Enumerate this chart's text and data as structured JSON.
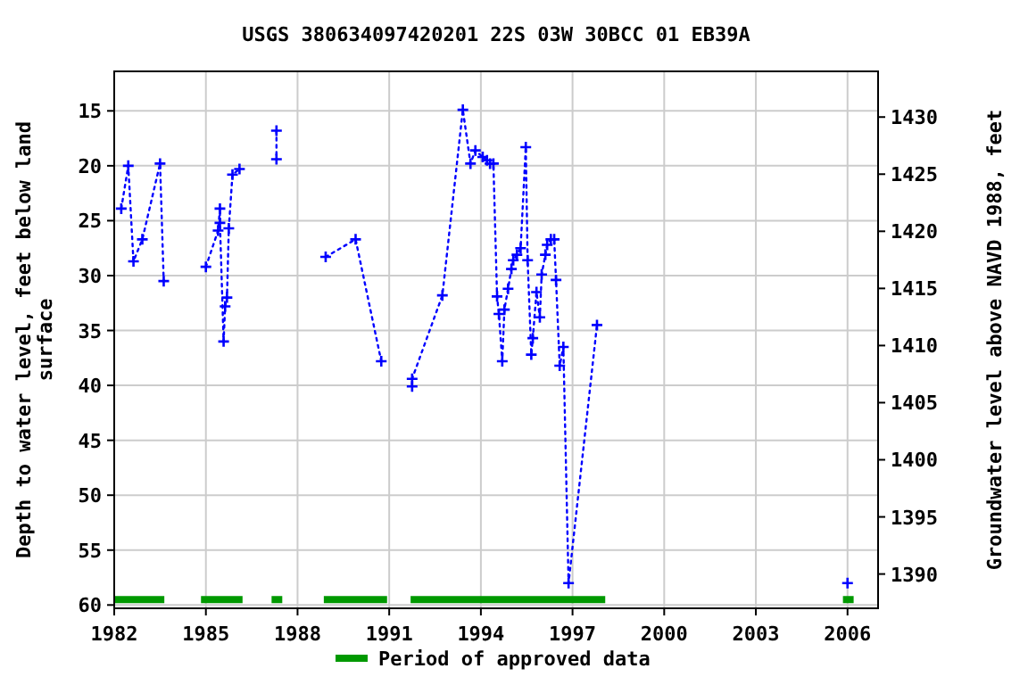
{
  "chart_data": {
    "type": "line",
    "title": "USGS 380634097420201 22S 03W 30BCC 01  EB39A",
    "xlabel": null,
    "ylabel": "Depth to water level, feet below land\nsurface",
    "y2label": "Groundwater level above NAVD 1988, feet",
    "x": [
      1982.23,
      1982.46,
      1982.63,
      1982.92,
      1983.5,
      1983.62,
      1984.3,
      1985.0,
      1985.4,
      1985.46,
      1985.46,
      1985.58,
      1985.63,
      1985.69,
      1985.75,
      1985.87,
      1986.1,
      1986.7,
      1987.31,
      1987.31,
      1988.1,
      1988.92,
      1989.9,
      1990.74,
      1991.2,
      1991.75,
      1991.75,
      1992.74,
      1993.41,
      1993.66,
      1993.82,
      1994.06,
      1994.2,
      1994.3,
      1994.41,
      1994.53,
      1994.59,
      1994.7,
      1994.77,
      1994.89,
      1995.0,
      1995.06,
      1995.18,
      1995.3,
      1995.47,
      1995.53,
      1995.65,
      1995.7,
      1995.82,
      1995.93,
      1995.99,
      1996.11,
      1996.17,
      1996.29,
      1996.4,
      1996.46,
      1996.58,
      1996.7,
      1996.87,
      1997.8,
      2002.0,
      2006.0
    ],
    "series": [
      {
        "color": "#0000ff",
        "values": [
          23.9,
          20.0,
          28.7,
          26.7,
          19.8,
          30.5,
          null,
          29.2,
          25.9,
          23.9,
          25.2,
          36.0,
          32.8,
          32.0,
          25.7,
          20.8,
          20.3,
          null,
          16.8,
          19.4,
          null,
          28.3,
          26.7,
          37.8,
          null,
          40.1,
          39.4,
          31.8,
          14.9,
          19.8,
          18.6,
          19.2,
          19.5,
          19.8,
          19.8,
          31.9,
          33.5,
          37.8,
          33.1,
          31.2,
          29.4,
          28.6,
          28.1,
          27.5,
          18.3,
          28.6,
          37.2,
          35.7,
          31.5,
          33.8,
          29.9,
          28.1,
          27.2,
          26.7,
          26.7,
          30.4,
          38.2,
          36.5,
          58.0,
          34.5,
          null,
          58.0
        ]
      },
      {
        "name": "Period of approved data",
        "color": "#009900",
        "marker": "none",
        "line_style": "solid",
        "x": [
          1982.0,
          1983.64,
          1984.2,
          1984.84,
          1986.2,
          1986.7,
          1987.15,
          1987.5,
          1988.1,
          1988.86,
          1990.93,
          1991.3,
          1991.7,
          1998.07,
          2002.0,
          2005.85,
          2006.2
        ],
        "values": [
          59.5,
          59.5,
          null,
          59.5,
          59.5,
          null,
          59.5,
          59.5,
          null,
          59.5,
          59.5,
          null,
          59.5,
          59.5,
          null,
          59.5,
          59.5
        ]
      }
    ],
    "xlim": [
      1982,
      2007
    ],
    "ylim": [
      60.3,
      11.4
    ],
    "y2lim": [
      1387,
      1434
    ],
    "xticks": [
      1982,
      1985,
      1988,
      1991,
      1994,
      1997,
      2000,
      2003,
      2006
    ],
    "yticks": [
      15,
      20,
      25,
      30,
      35,
      40,
      45,
      50,
      55,
      60
    ],
    "y2ticks": [
      1390,
      1395,
      1400,
      1405,
      1410,
      1415,
      1420,
      1425,
      1430
    ],
    "grid": true,
    "legend": "bottom",
    "marker": "cross",
    "line_style": "dotted"
  }
}
